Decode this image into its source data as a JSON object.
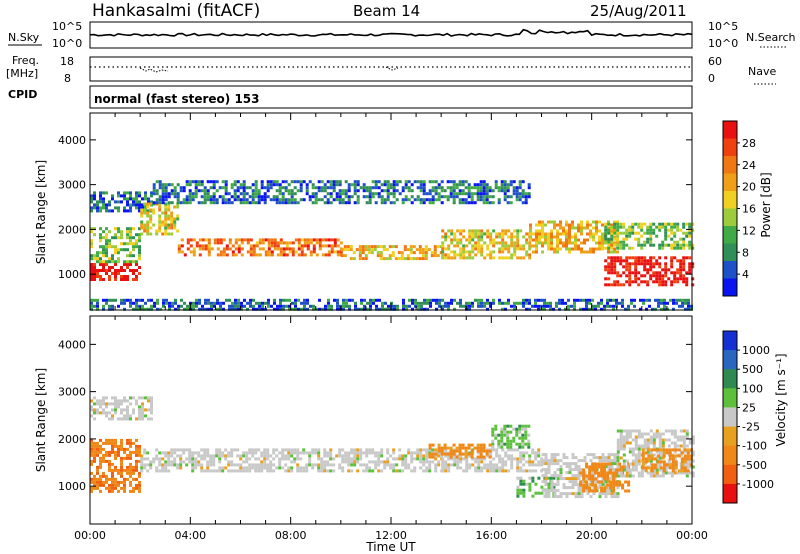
{
  "header": {
    "station": "Hankasalmi (fitACF)",
    "beam": "Beam 14",
    "date": "25/Aug/2011"
  },
  "top_panels": {
    "nsky_label": "N.Sky",
    "nsearch_label": "N.Search",
    "noise_ticks": [
      "10^5",
      "10^0"
    ],
    "freq_label_line1": "Freq.",
    "freq_label_line2": "[MHz]",
    "freq_ticks": [
      "18",
      "8"
    ],
    "nave_label": "Nave",
    "nave_ticks": [
      "60",
      "0"
    ],
    "cpid_label": "CPID",
    "cpid_text": "normal (fast stereo) 153"
  },
  "colors": {
    "power": [
      "#0a14f0",
      "#1e50c8",
      "#2f8f56",
      "#3faa46",
      "#9ccc3c",
      "#f0d020",
      "#f0a018",
      "#f07814",
      "#f04010",
      "#e81010"
    ],
    "velocity": [
      "#1430d2",
      "#2a66c0",
      "#2e8a50",
      "#5cc03c",
      "#c8c8c8",
      "#e8a020",
      "#f08818",
      "#f06010",
      "#e81010"
    ]
  },
  "chart_data": [
    {
      "type": "heatmap",
      "name": "power",
      "xlabel": "",
      "ylabel": "Slant Range [km]",
      "ylim": [
        200,
        4600
      ],
      "yticks": [
        1000,
        2000,
        3000,
        4000
      ],
      "ytick_labels": [
        "1000",
        "2000",
        "3000",
        "4000"
      ],
      "xlim": [
        0,
        24
      ],
      "colorbar": {
        "label": "Power [dB]",
        "levels": [
          4,
          8,
          12,
          16,
          20,
          24,
          28
        ],
        "tick_labels": [
          "4",
          "8",
          "12",
          "16",
          "20",
          "24",
          "28"
        ]
      },
      "echo_bands": [
        {
          "t0": 0.0,
          "t1": 2.0,
          "r0": 850,
          "r1": 1250,
          "power": 28
        },
        {
          "t0": 0.0,
          "t1": 2.0,
          "r0": 1250,
          "r1": 2050,
          "power": 12
        },
        {
          "t0": 0.0,
          "t1": 2.5,
          "r0": 2400,
          "r1": 2850,
          "power": 6
        },
        {
          "t0": 2.0,
          "t1": 3.5,
          "r0": 1900,
          "r1": 2600,
          "power": 16
        },
        {
          "t0": 3.5,
          "t1": 10.0,
          "r0": 1400,
          "r1": 1800,
          "power": 22
        },
        {
          "t0": 10.0,
          "t1": 14.0,
          "r0": 1350,
          "r1": 1650,
          "power": 18
        },
        {
          "t0": 14.0,
          "t1": 17.5,
          "r0": 1350,
          "r1": 2000,
          "power": 16
        },
        {
          "t0": 17.5,
          "t1": 21.0,
          "r0": 1500,
          "r1": 2200,
          "power": 18
        },
        {
          "t0": 20.5,
          "t1": 24.0,
          "r0": 750,
          "r1": 1400,
          "power": 28
        },
        {
          "t0": 20.5,
          "t1": 24.0,
          "r0": 1600,
          "r1": 2150,
          "power": 12
        },
        {
          "t0": 0.0,
          "t1": 24.0,
          "r0": 200,
          "r1": 450,
          "power": 6
        },
        {
          "t0": 2.5,
          "t1": 17.5,
          "r0": 2600,
          "r1": 3100,
          "power": 6
        }
      ]
    },
    {
      "type": "heatmap",
      "name": "velocity",
      "xlabel": "Time UT",
      "ylabel": "Slant Range [km]",
      "ylim": [
        200,
        4600
      ],
      "yticks": [
        1000,
        2000,
        3000,
        4000
      ],
      "ytick_labels": [
        "1000",
        "2000",
        "3000",
        "4000"
      ],
      "xlim": [
        0,
        24
      ],
      "xticks": [
        0,
        4,
        8,
        12,
        16,
        20,
        24
      ],
      "xtick_labels": [
        "00:00",
        "04:00",
        "08:00",
        "12:00",
        "16:00",
        "20:00",
        "00:00"
      ],
      "colorbar": {
        "label": "Velocity [m s⁻¹]",
        "levels": [
          1000,
          500,
          100,
          25,
          -25,
          -100,
          -500,
          -1000
        ],
        "tick_labels": [
          "1000",
          "500",
          "100",
          "25",
          "-25",
          "-100",
          "-500",
          "-1000"
        ]
      },
      "echo_bands": [
        {
          "t0": 0.0,
          "t1": 2.0,
          "r0": 900,
          "r1": 2000,
          "velocity": -400
        },
        {
          "t0": 0.0,
          "t1": 2.5,
          "r0": 2400,
          "r1": 2900,
          "velocity": 0
        },
        {
          "t0": 2.0,
          "t1": 14.0,
          "r0": 1350,
          "r1": 1800,
          "velocity": 0
        },
        {
          "t0": 14.0,
          "t1": 18.0,
          "r0": 1350,
          "r1": 1800,
          "velocity": 0
        },
        {
          "t0": 13.5,
          "t1": 16.0,
          "r0": 1600,
          "r1": 1900,
          "velocity": -200
        },
        {
          "t0": 16.0,
          "t1": 17.5,
          "r0": 1800,
          "r1": 2300,
          "velocity": 60
        },
        {
          "t0": 17.0,
          "t1": 18.5,
          "r0": 800,
          "r1": 1200,
          "velocity": 80
        },
        {
          "t0": 18.0,
          "t1": 21.0,
          "r0": 800,
          "r1": 1700,
          "velocity": 0
        },
        {
          "t0": 19.5,
          "t1": 21.5,
          "r0": 900,
          "r1": 1500,
          "velocity": -300
        },
        {
          "t0": 21.0,
          "t1": 24.0,
          "r0": 1200,
          "r1": 2200,
          "velocity": 0
        },
        {
          "t0": 22.0,
          "t1": 24.0,
          "r0": 1300,
          "r1": 1800,
          "velocity": -150
        }
      ]
    }
  ]
}
